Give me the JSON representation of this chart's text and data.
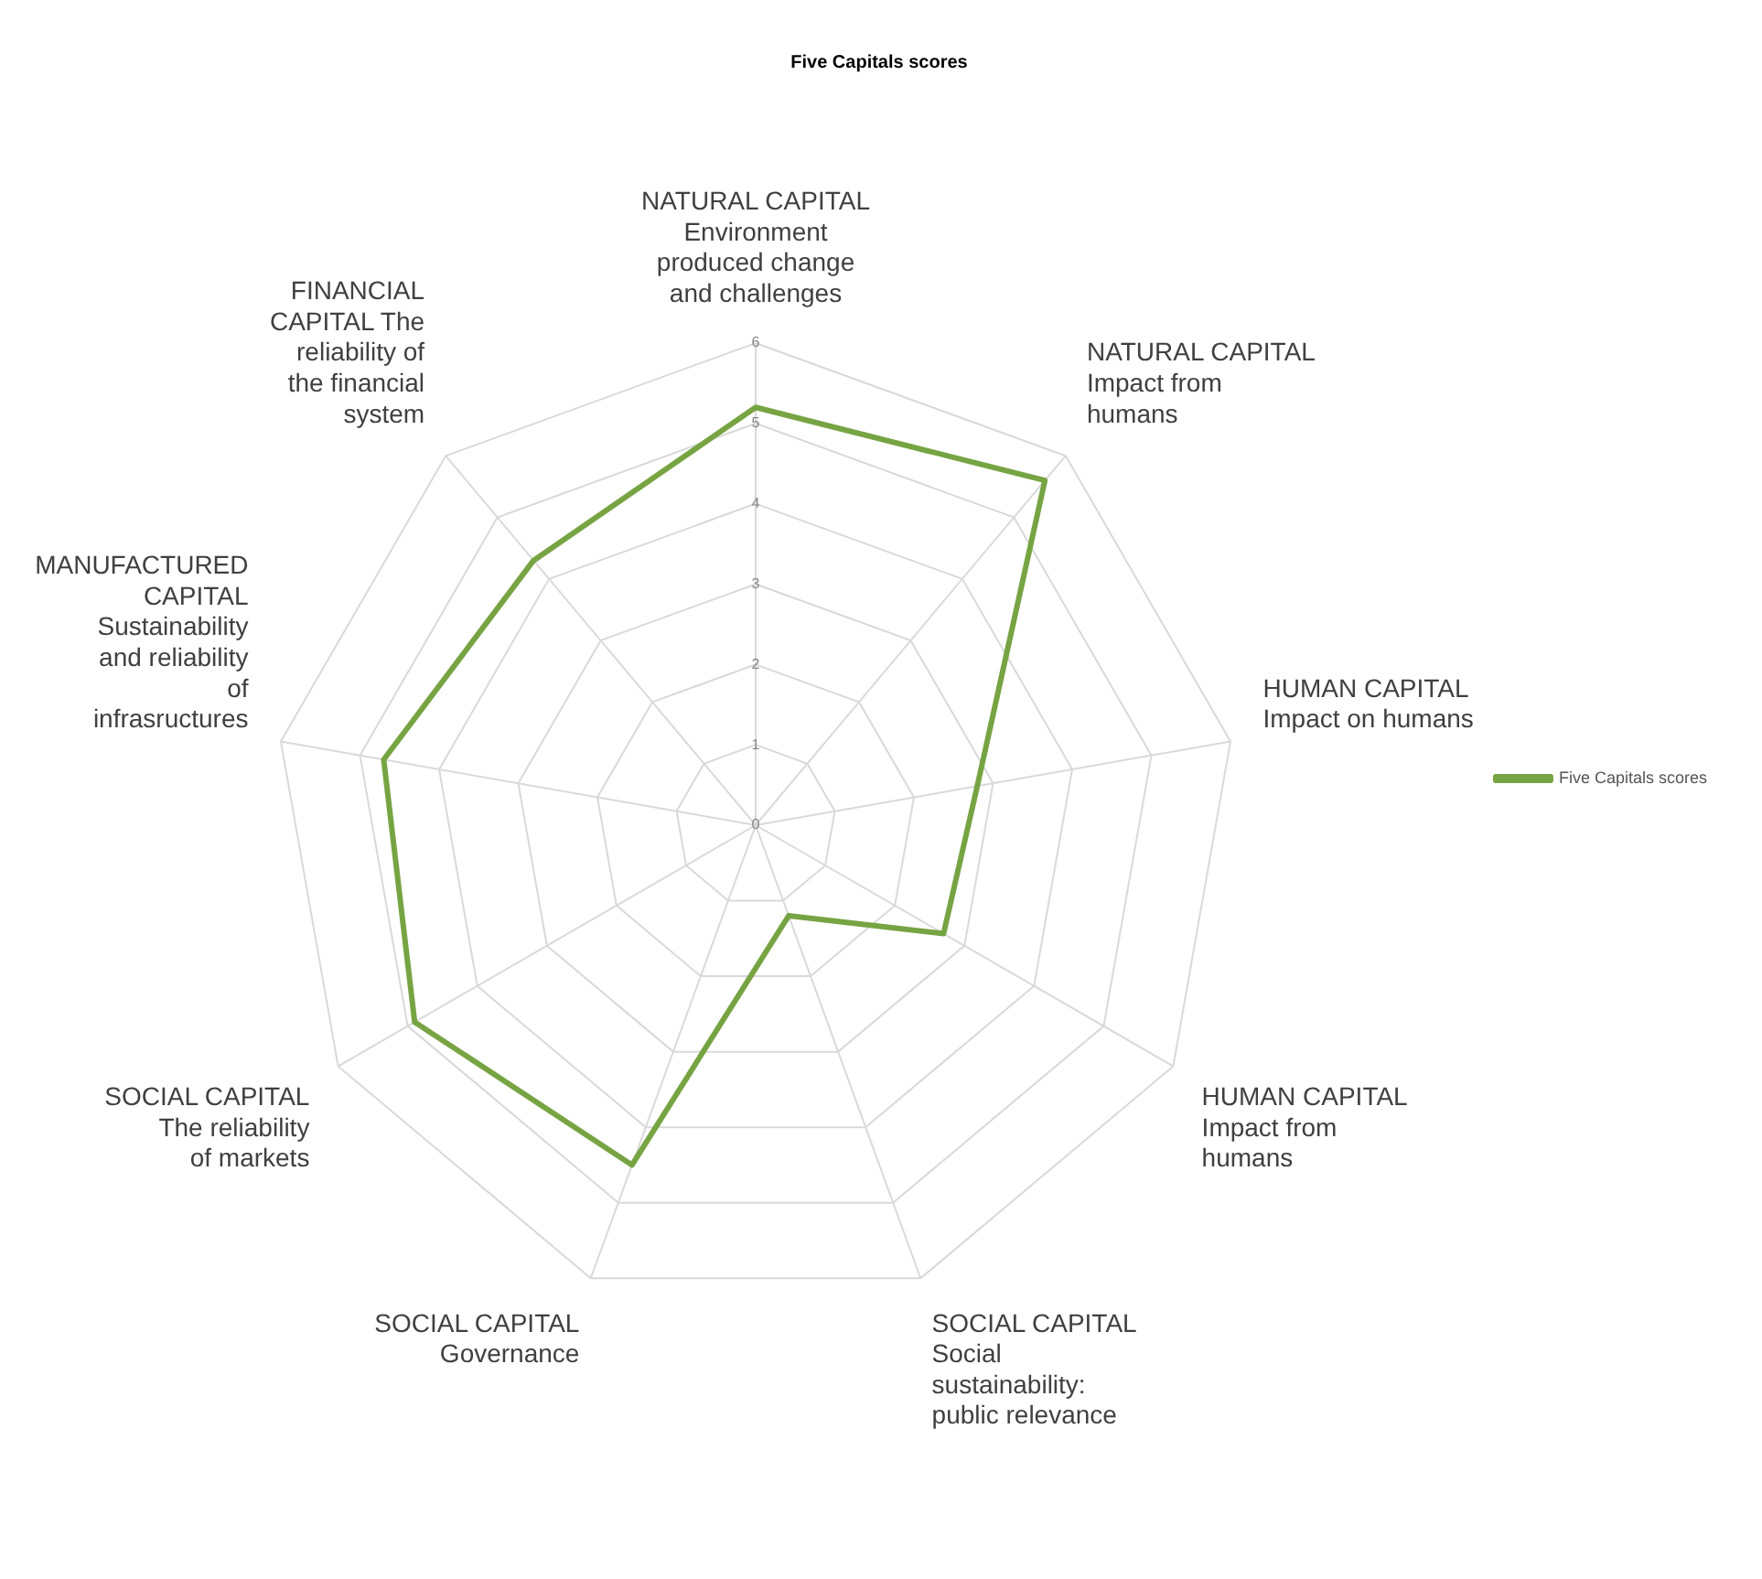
{
  "chart_data": {
    "type": "radar",
    "title": "Five Capitals scores",
    "categories": [
      "NATURAL CAPITAL Environment produced change and challenges",
      "NATURAL CAPITAL Impact from humans",
      "HUMAN CAPITAL Impact on humans",
      "HUMAN CAPITAL Impact from humans",
      "SOCIAL CAPITAL Social sustainability: public relevance",
      "SOCIAL CAPITAL Governance",
      "SOCIAL CAPITAL The reliability of markets",
      "MANUFACTURED CAPITAL Sustainability and reliability of infrasructures",
      "FINANCIAL CAPITAL The reliability of the financial system"
    ],
    "series": [
      {
        "name": "Five Capitals scores",
        "color": "#77a443",
        "values": [
          5.2,
          5.6,
          2.8,
          2.7,
          1.2,
          4.5,
          4.9,
          4.7,
          4.3
        ]
      }
    ],
    "ylim": [
      0,
      6
    ],
    "yticks": [
      0,
      1,
      2,
      3,
      4,
      5,
      6
    ],
    "grid": true,
    "legend": "right",
    "marker": "none"
  }
}
